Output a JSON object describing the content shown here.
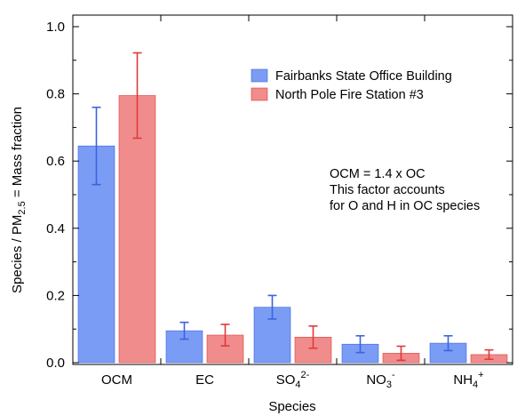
{
  "chart_data": {
    "type": "bar",
    "xlabel": "Species",
    "ylabel_parts": [
      "Species / PM",
      "2.5",
      " = Mass fraction"
    ],
    "ylim": [
      0,
      1.0
    ],
    "yticks": [
      "0.0",
      "0.2",
      "0.4",
      "0.6",
      "0.8",
      "1.0"
    ],
    "grid": false,
    "legend_position": "top-right",
    "categories": [
      {
        "base": "OCM",
        "sub": "",
        "sup": ""
      },
      {
        "base": "EC",
        "sub": "",
        "sup": ""
      },
      {
        "base": "SO",
        "sub": "4",
        "sup": "2-"
      },
      {
        "base": "NO",
        "sub": "3",
        "sup": "-"
      },
      {
        "base": "NH",
        "sub": "4",
        "sup": "+"
      }
    ],
    "series": [
      {
        "name": "Fairbanks State Office Building",
        "fill": "#7b9cf4",
        "edge": "#3a63e0",
        "values": [
          0.645,
          0.095,
          0.165,
          0.055,
          0.058
        ],
        "errors": [
          0.115,
          0.025,
          0.035,
          0.025,
          0.022
        ]
      },
      {
        "name": "North Pole Fire Station #3",
        "fill": "#f08c8c",
        "edge": "#e03a3a",
        "values": [
          0.795,
          0.082,
          0.076,
          0.028,
          0.024
        ],
        "errors": [
          0.127,
          0.032,
          0.033,
          0.021,
          0.014
        ]
      }
    ],
    "annotation": [
      "OCM = 1.4 x OC",
      "This factor accounts",
      "for O and H in OC species"
    ]
  }
}
